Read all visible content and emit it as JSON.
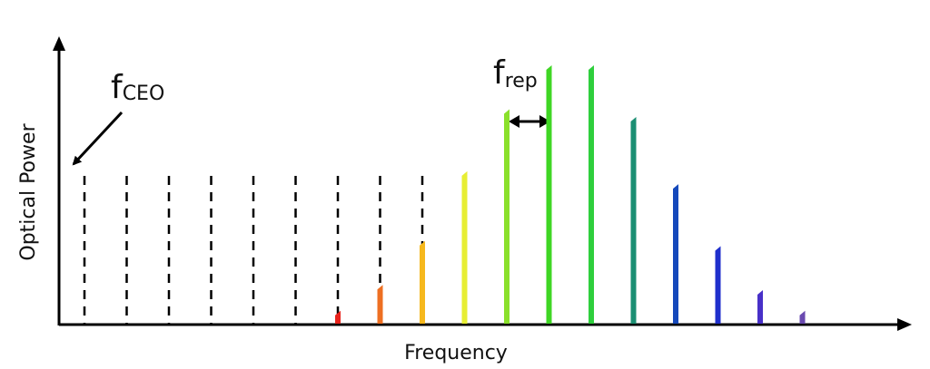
{
  "axes": {
    "x_label": "Frequency",
    "y_label": "Optical Power"
  },
  "labels": {
    "ceo_main": "f",
    "ceo_sub": "CEO",
    "rep_main": "f",
    "rep_sub": "rep"
  },
  "comb": {
    "dashed_line_count": 9,
    "lines": [
      {
        "level": 0.05,
        "color": "#e8231c"
      },
      {
        "level": 0.15,
        "color": "#ee6f22"
      },
      {
        "level": 0.32,
        "color": "#f6b81d"
      },
      {
        "level": 0.59,
        "color": "#e7ee33"
      },
      {
        "level": 0.83,
        "color": "#8ae02b"
      },
      {
        "level": 1.0,
        "color": "#3fd624"
      },
      {
        "level": 1.0,
        "color": "#2fcf3d"
      },
      {
        "level": 0.8,
        "color": "#1b8f73"
      },
      {
        "level": 0.54,
        "color": "#1549bb"
      },
      {
        "level": 0.3,
        "color": "#1f2fcc"
      },
      {
        "level": 0.13,
        "color": "#4830c8"
      },
      {
        "level": 0.05,
        "color": "#6a4ab0"
      }
    ]
  }
}
